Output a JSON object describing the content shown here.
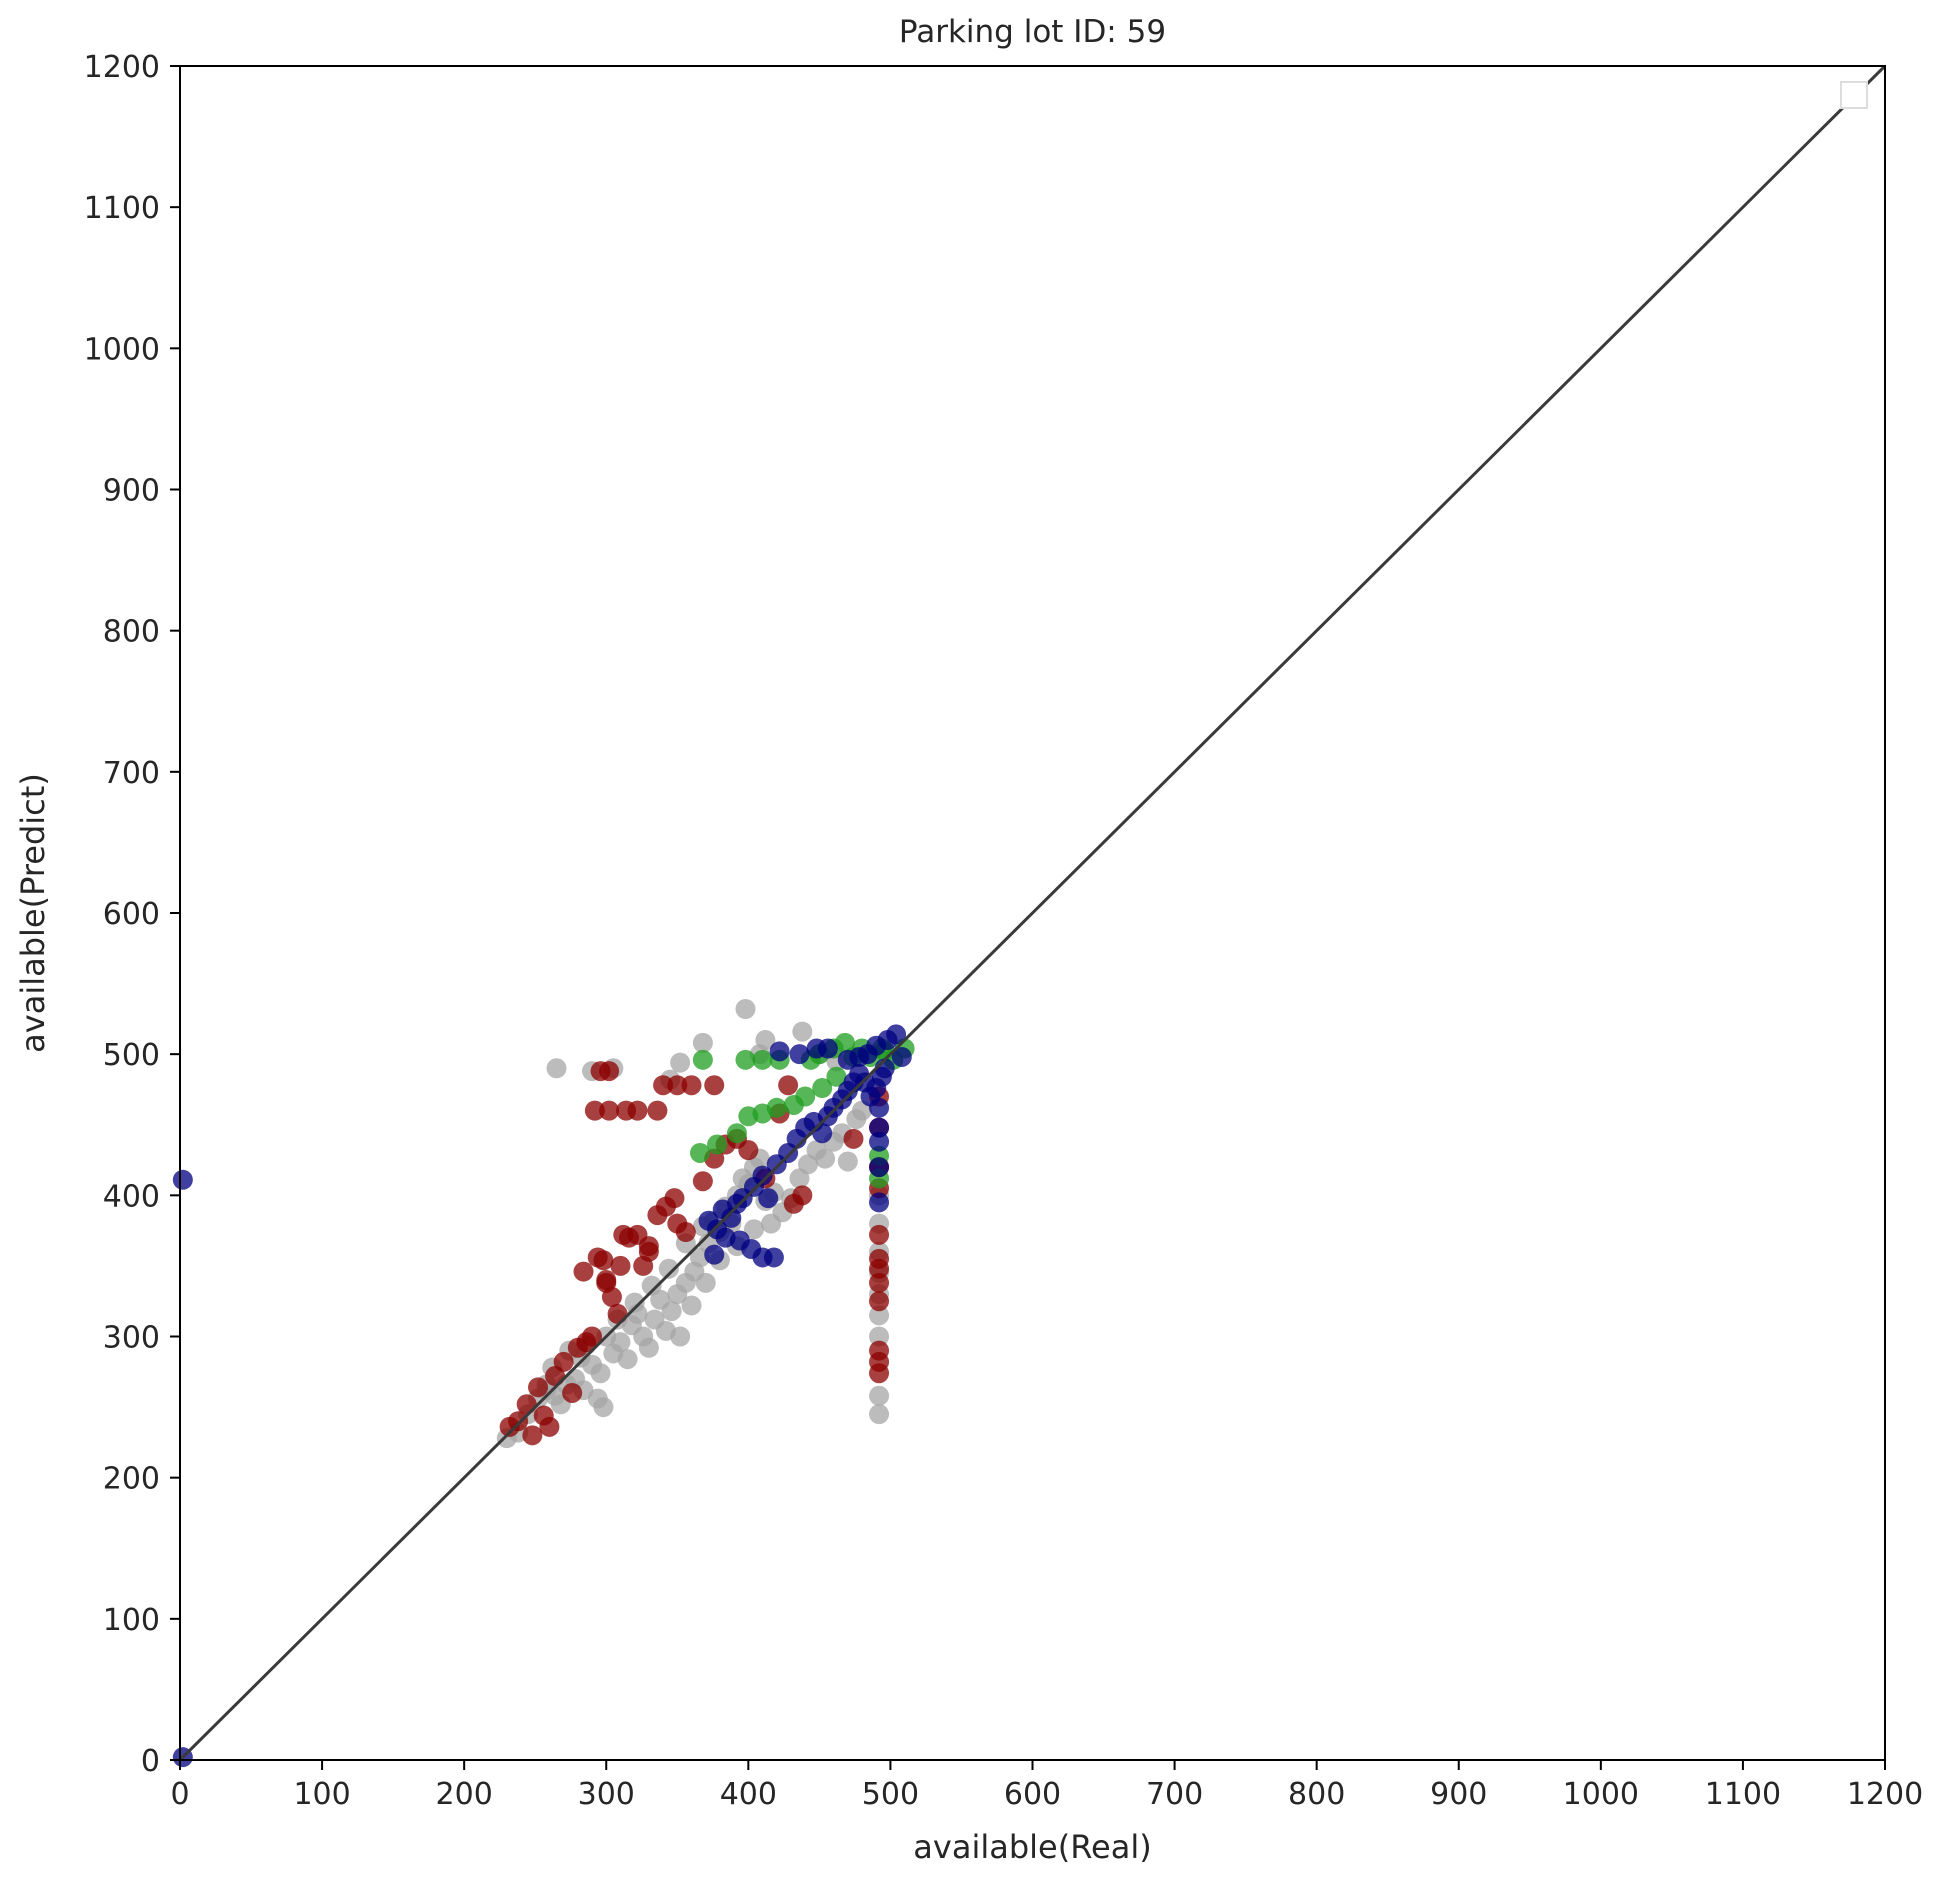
{
  "chart_data": {
    "type": "scatter",
    "title": "Parking lot ID: 59",
    "xlabel": "available(Real)",
    "ylabel": "available(Predict)",
    "xlim": [
      0,
      1200
    ],
    "ylim": [
      0,
      1200
    ],
    "xticks": [
      "0",
      "100",
      "200",
      "300",
      "400",
      "500",
      "600",
      "700",
      "800",
      "900",
      "1000",
      "1100",
      "1200"
    ],
    "yticks": [
      "0",
      "100",
      "200",
      "300",
      "400",
      "500",
      "600",
      "700",
      "800",
      "900",
      "1000",
      "1100",
      "1200"
    ],
    "grid": false,
    "legend": "top-right (empty)",
    "reference_line": {
      "from": [
        0,
        0
      ],
      "to": [
        1200,
        1200
      ],
      "color": "#3a3a3a"
    },
    "series": [
      {
        "color": "#a6a6a6",
        "points": [
          [
            265,
            490
          ],
          [
            290,
            488
          ],
          [
            305,
            490
          ],
          [
            345,
            482
          ],
          [
            352,
            494
          ],
          [
            368,
            508
          ],
          [
            398,
            532
          ],
          [
            408,
            500
          ],
          [
            412,
            510
          ],
          [
            438,
            516
          ],
          [
            450,
            500
          ],
          [
            462,
            495
          ],
          [
            230,
            228
          ],
          [
            238,
            232
          ],
          [
            245,
            245
          ],
          [
            252,
            256
          ],
          [
            258,
            262
          ],
          [
            262,
            278
          ],
          [
            268,
            252
          ],
          [
            272,
            266
          ],
          [
            278,
            270
          ],
          [
            282,
            285
          ],
          [
            286,
            294
          ],
          [
            290,
            280
          ],
          [
            294,
            256
          ],
          [
            298,
            250
          ],
          [
            300,
            300
          ],
          [
            305,
            288
          ],
          [
            310,
            296
          ],
          [
            315,
            284
          ],
          [
            318,
            308
          ],
          [
            322,
            316
          ],
          [
            326,
            300
          ],
          [
            330,
            292
          ],
          [
            334,
            312
          ],
          [
            338,
            326
          ],
          [
            342,
            304
          ],
          [
            346,
            318
          ],
          [
            350,
            330
          ],
          [
            352,
            300
          ],
          [
            356,
            338
          ],
          [
            360,
            322
          ],
          [
            362,
            346
          ],
          [
            366,
            356
          ],
          [
            370,
            338
          ],
          [
            372,
            366
          ],
          [
            376,
            382
          ],
          [
            380,
            374
          ],
          [
            384,
            392
          ],
          [
            388,
            380
          ],
          [
            392,
            400
          ],
          [
            396,
            412
          ],
          [
            400,
            408
          ],
          [
            404,
            420
          ],
          [
            408,
            426
          ],
          [
            412,
            396
          ],
          [
            418,
            402
          ],
          [
            424,
            388
          ],
          [
            430,
            398
          ],
          [
            436,
            412
          ],
          [
            442,
            422
          ],
          [
            448,
            432
          ],
          [
            454,
            426
          ],
          [
            460,
            438
          ],
          [
            466,
            444
          ],
          [
            470,
            424
          ],
          [
            476,
            454
          ],
          [
            480,
            460
          ],
          [
            258,
            266
          ],
          [
            264,
            258
          ],
          [
            274,
            290
          ],
          [
            284,
            262
          ],
          [
            296,
            274
          ],
          [
            308,
            312
          ],
          [
            320,
            324
          ],
          [
            332,
            336
          ],
          [
            344,
            348
          ],
          [
            356,
            366
          ],
          [
            368,
            378
          ],
          [
            380,
            354
          ],
          [
            392,
            364
          ],
          [
            404,
            376
          ],
          [
            416,
            380
          ],
          [
            492,
            420
          ],
          [
            492,
            400
          ],
          [
            492,
            380
          ],
          [
            492,
            360
          ],
          [
            492,
            345
          ],
          [
            492,
            330
          ],
          [
            492,
            315
          ],
          [
            492,
            300
          ],
          [
            492,
            258
          ],
          [
            492,
            245
          ]
        ]
      },
      {
        "color": "#8b0000",
        "points": [
          [
            292,
            460
          ],
          [
            302,
            460
          ],
          [
            314,
            460
          ],
          [
            322,
            460
          ],
          [
            336,
            460
          ],
          [
            340,
            478
          ],
          [
            350,
            478
          ],
          [
            360,
            478
          ],
          [
            376,
            478
          ],
          [
            296,
            488
          ],
          [
            302,
            488
          ],
          [
            232,
            236
          ],
          [
            238,
            240
          ],
          [
            244,
            252
          ],
          [
            248,
            230
          ],
          [
            252,
            264
          ],
          [
            256,
            244
          ],
          [
            260,
            236
          ],
          [
            264,
            272
          ],
          [
            270,
            282
          ],
          [
            276,
            260
          ],
          [
            280,
            292
          ],
          [
            286,
            296
          ],
          [
            290,
            300
          ],
          [
            294,
            356
          ],
          [
            298,
            354
          ],
          [
            300,
            340
          ],
          [
            304,
            328
          ],
          [
            308,
            316
          ],
          [
            312,
            372
          ],
          [
            316,
            370
          ],
          [
            322,
            372
          ],
          [
            326,
            350
          ],
          [
            330,
            364
          ],
          [
            336,
            386
          ],
          [
            342,
            392
          ],
          [
            348,
            398
          ],
          [
            350,
            380
          ],
          [
            356,
            374
          ],
          [
            368,
            410
          ],
          [
            376,
            426
          ],
          [
            384,
            436
          ],
          [
            392,
            440
          ],
          [
            400,
            432
          ],
          [
            412,
            412
          ],
          [
            422,
            458
          ],
          [
            428,
            478
          ],
          [
            432,
            394
          ],
          [
            438,
            400
          ],
          [
            474,
            440
          ],
          [
            492,
            470
          ],
          [
            492,
            448
          ],
          [
            492,
            420
          ],
          [
            492,
            405
          ],
          [
            492,
            372
          ],
          [
            492,
            355
          ],
          [
            492,
            348
          ],
          [
            492,
            338
          ],
          [
            492,
            325
          ],
          [
            492,
            290
          ],
          [
            492,
            282
          ],
          [
            492,
            274
          ],
          [
            284,
            346
          ],
          [
            300,
            338
          ],
          [
            310,
            350
          ],
          [
            330,
            360
          ]
        ]
      },
      {
        "color": "#1f9e1f",
        "points": [
          [
            368,
            496
          ],
          [
            398,
            496
          ],
          [
            410,
            496
          ],
          [
            422,
            496
          ],
          [
            444,
            496
          ],
          [
            450,
            500
          ],
          [
            460,
            504
          ],
          [
            468,
            508
          ],
          [
            474,
            498
          ],
          [
            480,
            504
          ],
          [
            486,
            498
          ],
          [
            494,
            504
          ],
          [
            502,
            496
          ],
          [
            510,
            504
          ],
          [
            400,
            456
          ],
          [
            410,
            458
          ],
          [
            420,
            462
          ],
          [
            432,
            464
          ],
          [
            440,
            470
          ],
          [
            452,
            476
          ],
          [
            462,
            484
          ],
          [
            366,
            430
          ],
          [
            378,
            436
          ],
          [
            392,
            444
          ],
          [
            492,
            428
          ],
          [
            492,
            412
          ],
          [
            496,
            502
          ]
        ]
      },
      {
        "color": "#000080",
        "points": [
          [
            2,
            411
          ],
          [
            422,
            502
          ],
          [
            436,
            500
          ],
          [
            448,
            504
          ],
          [
            456,
            504
          ],
          [
            470,
            496
          ],
          [
            478,
            498
          ],
          [
            484,
            500
          ],
          [
            490,
            506
          ],
          [
            498,
            510
          ],
          [
            504,
            514
          ],
          [
            508,
            498
          ],
          [
            396,
            398
          ],
          [
            404,
            406
          ],
          [
            410,
            414
          ],
          [
            414,
            398
          ],
          [
            420,
            422
          ],
          [
            428,
            430
          ],
          [
            434,
            440
          ],
          [
            440,
            448
          ],
          [
            446,
            452
          ],
          [
            452,
            444
          ],
          [
            456,
            456
          ],
          [
            460,
            462
          ],
          [
            466,
            468
          ],
          [
            470,
            474
          ],
          [
            474,
            480
          ],
          [
            478,
            486
          ],
          [
            482,
            480
          ],
          [
            486,
            470
          ],
          [
            490,
            476
          ],
          [
            494,
            484
          ],
          [
            496,
            490
          ],
          [
            372,
            382
          ],
          [
            378,
            376
          ],
          [
            382,
            390
          ],
          [
            388,
            384
          ],
          [
            392,
            394
          ],
          [
            376,
            358
          ],
          [
            384,
            370
          ],
          [
            394,
            368
          ],
          [
            402,
            362
          ],
          [
            410,
            356
          ],
          [
            418,
            356
          ],
          [
            492,
            462
          ],
          [
            492,
            448
          ],
          [
            492,
            438
          ],
          [
            492,
            420
          ],
          [
            492,
            395
          ],
          [
            2,
            2
          ]
        ]
      }
    ]
  }
}
